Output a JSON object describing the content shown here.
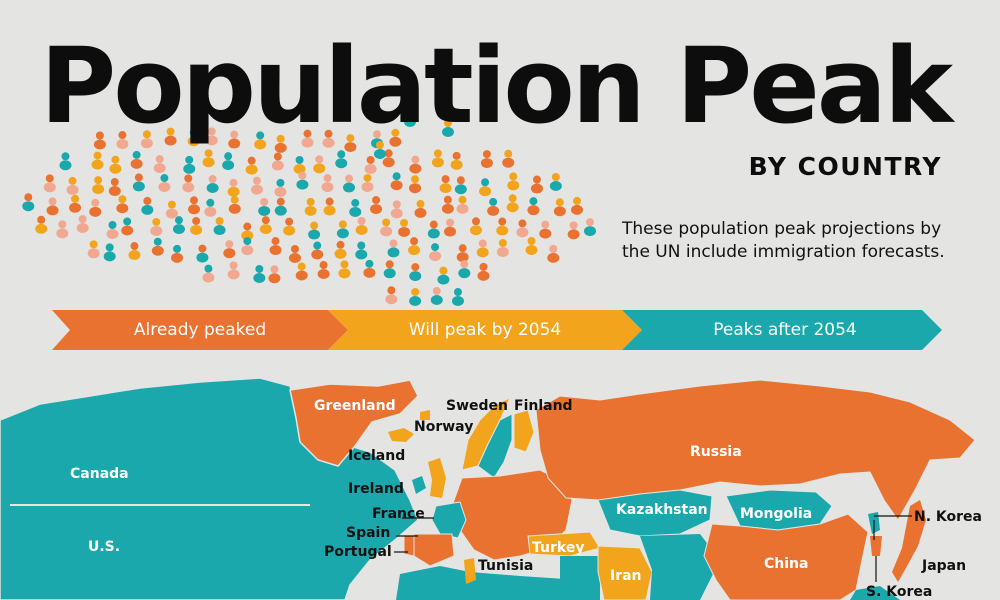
{
  "header": {
    "title": "Population Peak",
    "subtitle": "BY COUNTRY",
    "note_line1": "These population peak projections by",
    "note_line2": "the UN include immigration forecasts."
  },
  "legend": [
    {
      "label": "Already peaked",
      "color": "#ea7230"
    },
    {
      "label": "Will peak by 2054",
      "color": "#f2a51c"
    },
    {
      "label": "Peaks after 2054",
      "color": "#1aa8ad"
    }
  ],
  "colors": {
    "background": "#e4e4e2",
    "already_peaked": "#ea7230",
    "will_peak": "#f2a51c",
    "after_2054": "#1aa8ad",
    "text": "#0d0d0d"
  },
  "map_labels": {
    "greenland": "Greenland",
    "sweden": "Sweden",
    "finland": "Finland",
    "norway": "Norway",
    "iceland": "Iceland",
    "ireland": "Ireland",
    "france": "France",
    "spain": "Spain",
    "portugal": "Portugal",
    "tunisia": "Tunisia",
    "canada": "Canada",
    "us": "U.S.",
    "russia": "Russia",
    "kazakhstan": "Kazakhstan",
    "mongolia": "Mongolia",
    "turkey": "Turkey",
    "iran": "Iran",
    "china": "China",
    "n_korea": "N. Korea",
    "s_korea": "S. Korea",
    "japan": "Japan"
  }
}
